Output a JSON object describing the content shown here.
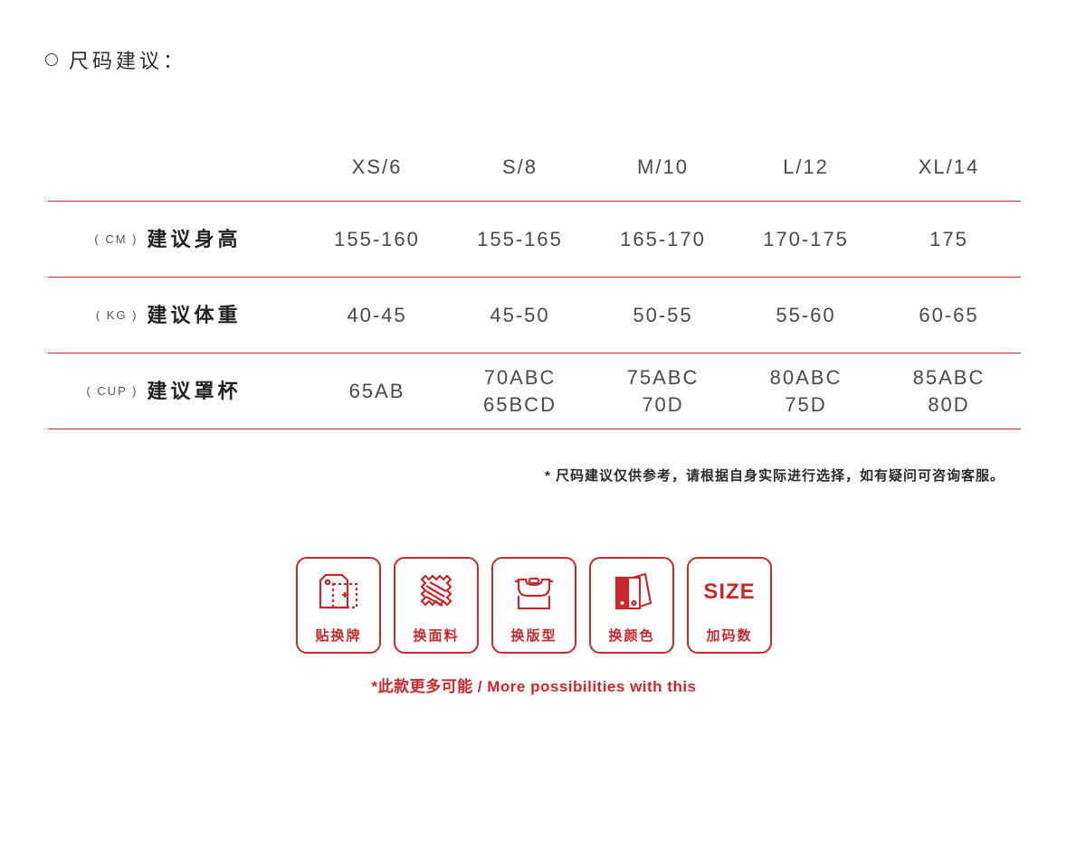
{
  "header": {
    "title": "尺码建议："
  },
  "table": {
    "divider_color": "#c7292d",
    "sizes": [
      "XS/6",
      "S/8",
      "M/10",
      "L/12",
      "XL/14"
    ],
    "rows": [
      {
        "unit": "( CM )",
        "label": "建议身高",
        "values": [
          "155-160",
          "155-165",
          "165-170",
          "170-175",
          "175"
        ]
      },
      {
        "unit": "( KG )",
        "label": "建议体重",
        "values": [
          "40-45",
          "45-50",
          "50-55",
          "55-60",
          "60-65"
        ]
      },
      {
        "unit": "( CUP )",
        "label": "建议罩杯",
        "values": [
          "65AB",
          "70ABC\n65BCD",
          "75ABC\n70D",
          "80ABC\n75D",
          "85ABC\n80D"
        ]
      }
    ]
  },
  "footnote": "* 尺码建议仅供参考，请根据自身实际进行选择，如有疑问可咨询客服。",
  "badges": [
    {
      "icon": "tag",
      "label": "贴换牌"
    },
    {
      "icon": "fabric",
      "label": "换面料"
    },
    {
      "icon": "pattern",
      "label": "换版型"
    },
    {
      "icon": "color",
      "label": "换颜色"
    },
    {
      "icon": "size",
      "label": "加码数",
      "text": "SIZE"
    }
  ],
  "caption": "*此款更多可能 / More possibilities with this",
  "colors": {
    "accent": "#c7292d",
    "text": "#3b3b3b",
    "background": "#ffffff"
  }
}
